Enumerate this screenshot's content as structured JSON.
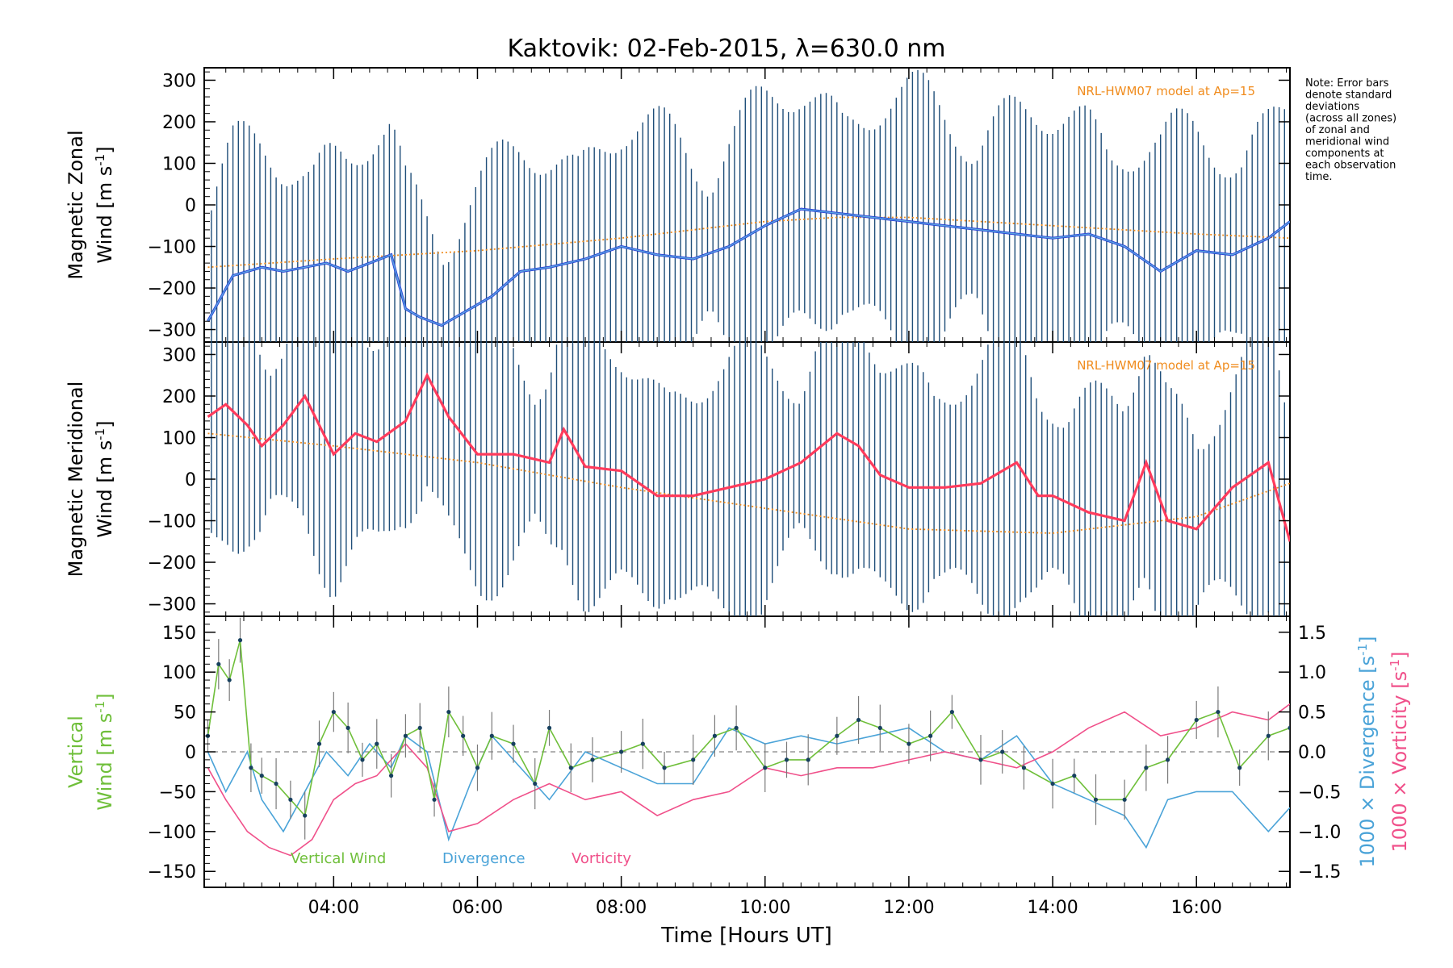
{
  "title": "Kaktovik: 02-Feb-2015, λ=630.0 nm",
  "note": [
    "Note: Error bars",
    "denote standard",
    "deviations",
    "(across all zones)",
    "of zonal and",
    "meridional wind",
    "components at",
    "each observation",
    "time."
  ],
  "colors": {
    "zonal": "#2a3fd6",
    "zonal_light": "#5aa8e0",
    "meridional": "#ff3b5c",
    "model": "#f08c1e",
    "errorbar": "#1f4e79",
    "vertical": "#6fbf3a",
    "divergence": "#4aa3d8",
    "vorticity": "#f0508a",
    "points": "#17405f"
  },
  "chart_data": [
    {
      "type": "line",
      "ylabel": "Magnetic Zonal Wind [m s-1]",
      "ylabel_lines": [
        "Magnetic Zonal",
        "Wind [m s"
      ],
      "ylim": [
        -330,
        330
      ],
      "yticks": [
        -300,
        -200,
        -100,
        0,
        100,
        200,
        300
      ],
      "annotation": "NRL-HWM07 model at Ap=15",
      "series": [
        {
          "key": "zonal_wind",
          "x": [
            2.25,
            2.6,
            3.0,
            3.3,
            3.6,
            3.9,
            4.2,
            4.5,
            4.8,
            5.0,
            5.2,
            5.5,
            5.8,
            6.2,
            6.6,
            7.0,
            7.5,
            8.0,
            8.5,
            9.0,
            9.5,
            10.0,
            10.5,
            11.0,
            11.5,
            12.0,
            12.5,
            13.0,
            13.5,
            14.0,
            14.5,
            15.0,
            15.5,
            16.0,
            16.5,
            17.0,
            17.3
          ],
          "y": [
            -280,
            -170,
            -150,
            -160,
            -150,
            -140,
            -160,
            -140,
            -120,
            -250,
            -270,
            -290,
            -260,
            -220,
            -160,
            -150,
            -130,
            -100,
            -120,
            -130,
            -100,
            -50,
            -10,
            -20,
            -30,
            -40,
            -50,
            -60,
            -70,
            -80,
            -70,
            -100,
            -160,
            -110,
            -120,
            -80,
            -40
          ]
        },
        {
          "key": "hwm07",
          "x": [
            2.25,
            4.0,
            6.0,
            8.0,
            10.0,
            11.0,
            12.0,
            14.0,
            16.0,
            17.3
          ],
          "y": [
            -150,
            -130,
            -110,
            -80,
            -40,
            -30,
            -30,
            -50,
            -70,
            -80
          ]
        }
      ]
    },
    {
      "type": "line",
      "ylabel": "Magnetic Meridional Wind [m s-1]",
      "ylabel_lines": [
        "Magnetic Meridional",
        "Wind [m s"
      ],
      "ylim": [
        -330,
        330
      ],
      "yticks": [
        -300,
        -200,
        -100,
        0,
        100,
        200,
        300
      ],
      "annotation": "NRL-HWM07 model at Ap=15",
      "series": [
        {
          "key": "meridional_wind",
          "x": [
            2.25,
            2.5,
            2.8,
            3.0,
            3.3,
            3.6,
            4.0,
            4.3,
            4.6,
            5.0,
            5.3,
            5.6,
            6.0,
            6.5,
            7.0,
            7.2,
            7.5,
            8.0,
            8.5,
            9.0,
            9.5,
            10.0,
            10.5,
            11.0,
            11.3,
            11.6,
            12.0,
            12.5,
            13.0,
            13.5,
            13.8,
            14.0,
            14.5,
            15.0,
            15.3,
            15.6,
            16.0,
            16.5,
            17.0,
            17.3
          ],
          "y": [
            150,
            180,
            130,
            80,
            130,
            200,
            60,
            110,
            90,
            140,
            250,
            150,
            60,
            60,
            40,
            120,
            30,
            20,
            -40,
            -40,
            -20,
            0,
            40,
            110,
            80,
            10,
            -20,
            -20,
            -10,
            40,
            -40,
            -40,
            -80,
            -100,
            40,
            -100,
            -120,
            -20,
            40,
            -150
          ]
        },
        {
          "key": "hwm07",
          "x": [
            2.25,
            4.0,
            6.0,
            8.0,
            10.0,
            12.0,
            14.0,
            16.0,
            17.3
          ],
          "y": [
            110,
            80,
            40,
            -20,
            -70,
            -120,
            -130,
            -90,
            -10
          ]
        }
      ]
    },
    {
      "type": "line",
      "ylabel": "Vertical Wind [m s-1]",
      "ylabel_lines": [
        "Vertical",
        "Wind [m s"
      ],
      "ylim": [
        -170,
        170
      ],
      "yticks": [
        -150,
        -100,
        -50,
        0,
        50,
        100,
        150
      ],
      "y2label_divergence": "1000 × Divergence [s-1]",
      "y2label_divergence_text": "1000 × Divergence [s",
      "y2label_vorticity": "1000 × Vorticity [s-1]",
      "y2label_vorticity_text": "1000 × Vorticity [s",
      "y2lim": [
        -1.7,
        1.7
      ],
      "y2ticks": [
        -1.5,
        -1.0,
        -0.5,
        0.0,
        0.5,
        1.0,
        1.5
      ],
      "y2ticklabels": [
        "-1.5",
        "-1.0",
        "-0.5",
        "0.0",
        "0.5",
        "1.0",
        "1.5"
      ],
      "legend": [
        "Vertical Wind",
        "Divergence",
        "Vorticity"
      ],
      "series": [
        {
          "key": "vertical_wind",
          "x": [
            2.25,
            2.4,
            2.55,
            2.7,
            2.85,
            3.0,
            3.2,
            3.4,
            3.6,
            3.8,
            4.0,
            4.2,
            4.4,
            4.6,
            4.8,
            5.0,
            5.2,
            5.4,
            5.6,
            5.8,
            6.0,
            6.2,
            6.5,
            6.8,
            7.0,
            7.3,
            7.6,
            8.0,
            8.3,
            8.6,
            9.0,
            9.3,
            9.6,
            10.0,
            10.3,
            10.6,
            11.0,
            11.3,
            11.6,
            12.0,
            12.3,
            12.6,
            13.0,
            13.3,
            13.6,
            14.0,
            14.3,
            14.6,
            15.0,
            15.3,
            15.6,
            16.0,
            16.3,
            16.6,
            17.0,
            17.3
          ],
          "y": [
            20,
            110,
            90,
            140,
            -20,
            -30,
            -40,
            -60,
            -80,
            10,
            50,
            30,
            -10,
            10,
            -30,
            20,
            30,
            -60,
            50,
            20,
            -20,
            20,
            10,
            -40,
            30,
            -20,
            -10,
            0,
            10,
            -20,
            -10,
            20,
            30,
            -20,
            -10,
            -10,
            20,
            40,
            30,
            10,
            20,
            50,
            -10,
            0,
            -20,
            -40,
            -30,
            -60,
            -60,
            -20,
            -10,
            40,
            50,
            -20,
            20,
            30
          ]
        },
        {
          "key": "divergence",
          "x": [
            2.25,
            2.5,
            2.8,
            3.0,
            3.3,
            3.6,
            3.9,
            4.2,
            4.5,
            4.8,
            5.0,
            5.3,
            5.6,
            5.9,
            6.2,
            6.5,
            7.0,
            7.5,
            8.0,
            8.5,
            9.0,
            9.5,
            10.0,
            10.5,
            11.0,
            11.5,
            12.0,
            12.5,
            13.0,
            13.5,
            14.0,
            14.5,
            15.0,
            15.3,
            15.6,
            16.0,
            16.5,
            17.0,
            17.3
          ],
          "y": [
            0.0,
            -0.5,
            0.0,
            -0.6,
            -1.0,
            -0.5,
            0.0,
            -0.3,
            0.1,
            -0.2,
            0.2,
            0.0,
            -1.1,
            -0.4,
            0.2,
            -0.1,
            -0.6,
            0.0,
            -0.2,
            -0.4,
            -0.4,
            0.3,
            0.1,
            0.2,
            0.1,
            0.2,
            0.3,
            0.0,
            -0.1,
            0.2,
            -0.4,
            -0.6,
            -0.8,
            -1.2,
            -0.6,
            -0.5,
            -0.5,
            -1.0,
            -0.7
          ]
        },
        {
          "key": "vorticity",
          "x": [
            2.25,
            2.5,
            2.8,
            3.1,
            3.4,
            3.7,
            4.0,
            4.3,
            4.6,
            5.0,
            5.3,
            5.6,
            6.0,
            6.5,
            7.0,
            7.5,
            8.0,
            8.5,
            9.0,
            9.5,
            10.0,
            10.5,
            11.0,
            11.5,
            12.0,
            12.5,
            13.0,
            13.5,
            14.0,
            14.5,
            15.0,
            15.5,
            16.0,
            16.5,
            17.0,
            17.3
          ],
          "y": [
            -0.2,
            -0.6,
            -1.0,
            -1.2,
            -1.3,
            -1.1,
            -0.6,
            -0.4,
            -0.3,
            0.1,
            -0.2,
            -1.0,
            -0.9,
            -0.6,
            -0.4,
            -0.6,
            -0.5,
            -0.8,
            -0.6,
            -0.5,
            -0.2,
            -0.3,
            -0.2,
            -0.2,
            -0.1,
            0.0,
            -0.1,
            -0.2,
            0.0,
            0.3,
            0.5,
            0.2,
            0.3,
            0.5,
            0.4,
            0.6
          ]
        }
      ]
    }
  ],
  "x_axis": {
    "label": "Time [Hours UT]",
    "xlim": [
      2.2,
      17.3
    ],
    "ticks": [
      4,
      6,
      8,
      10,
      12,
      14,
      16
    ],
    "tick_labels": [
      "04:00",
      "06:00",
      "08:00",
      "10:00",
      "12:00",
      "14:00",
      "16:00"
    ]
  }
}
